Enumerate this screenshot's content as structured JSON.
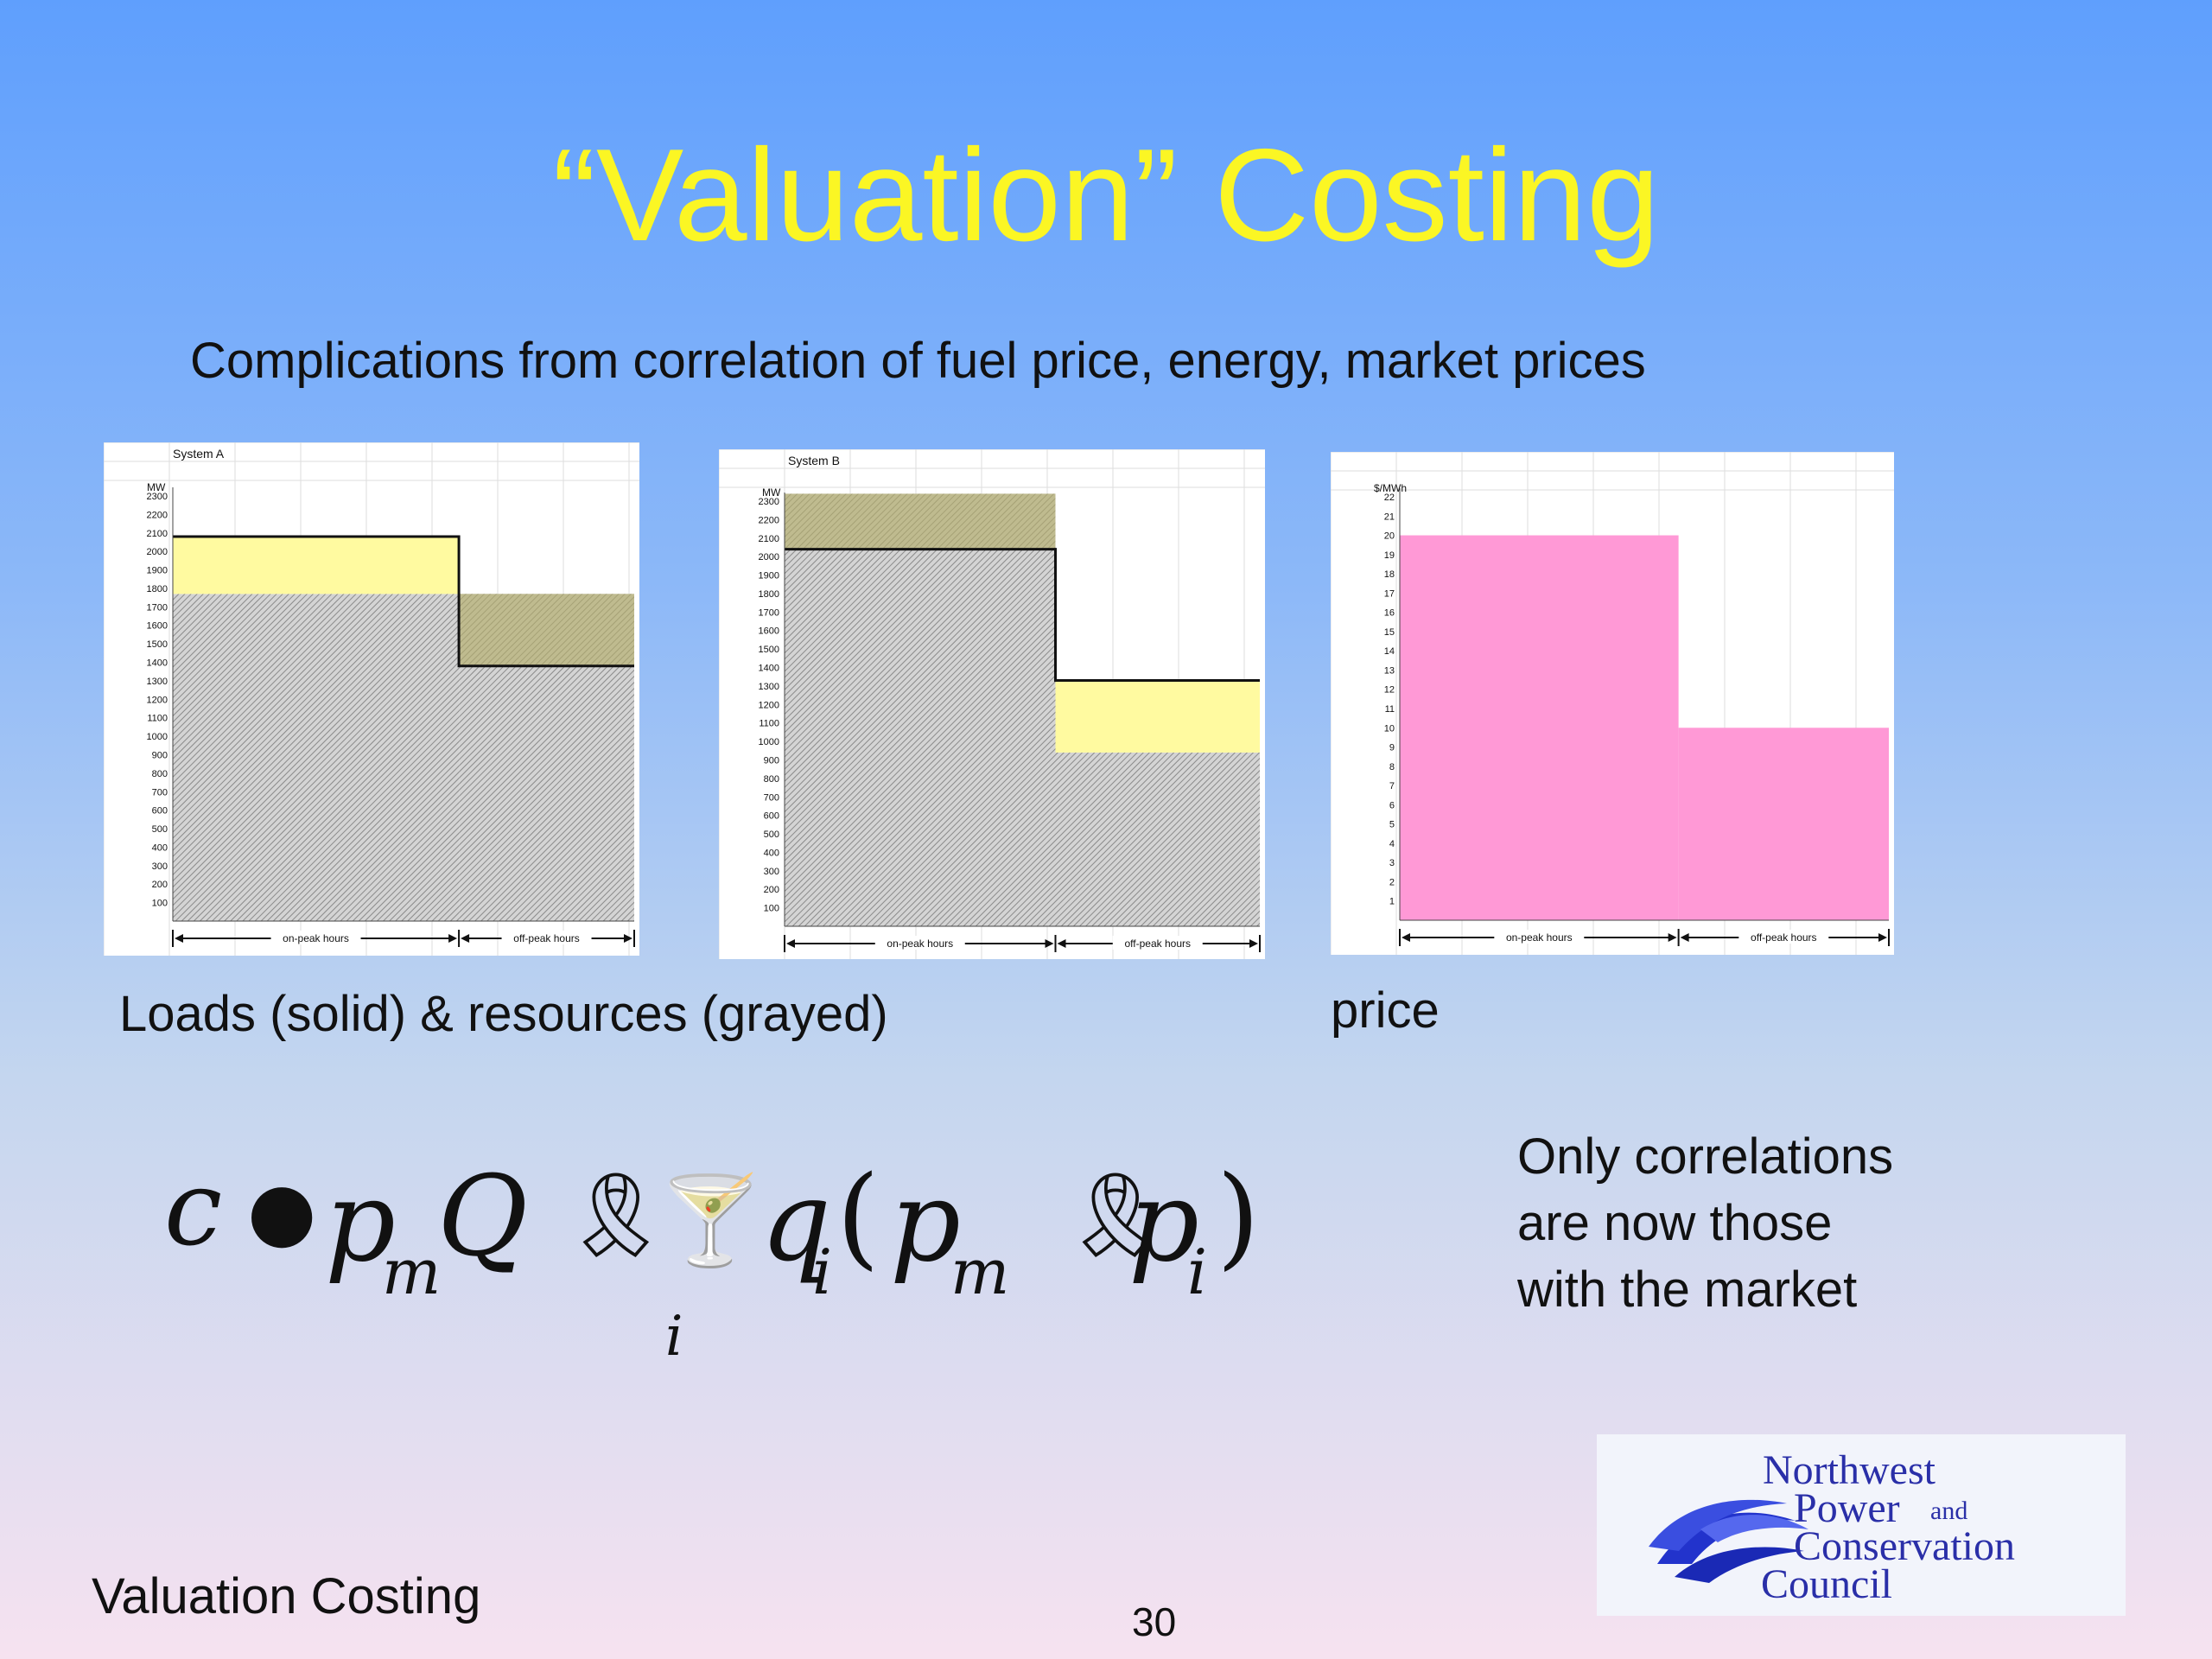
{
  "slide": {
    "title": "“Valuation” Costing",
    "subtitle": "Complications from correlation of fuel price, energy, market prices",
    "caption_loads": "Loads (solid) & resources (grayed)",
    "caption_price": "price",
    "note_lines": [
      "Only correlations",
      "are now those",
      "with the market"
    ],
    "footer_left": "Valuation Costing",
    "page_number": "30",
    "logo_lines": [
      "Northwest",
      "Power",
      "and",
      "Conservation",
      "Council"
    ]
  },
  "formula": {
    "c": "c",
    "bullet": "●",
    "p": "p",
    "m": "m",
    "Q": "Q",
    "ribbon": "🎗",
    "glass": "🍸",
    "q": "q",
    "i": "i",
    "lparen": "(",
    "rparen": ")"
  },
  "colors": {
    "title": "#fbf624",
    "load_surplus_fill": "#fffaa0",
    "market_purchase_fill": "#b4ad6a",
    "price_fill": "#ff99d6",
    "hatch": "#8a8a8a"
  },
  "chart_data": [
    {
      "type": "area",
      "title": "System A",
      "ylabel": "MW",
      "ylim": [
        0,
        2300
      ],
      "yticks": [
        "2300",
        "2200",
        "2100",
        "2000",
        "1900",
        "1800",
        "1700",
        "1600",
        "1500",
        "1400",
        "1300",
        "1200",
        "1100",
        "1000",
        "900",
        "800",
        "700",
        "600",
        "500",
        "400",
        "300",
        "200",
        "100"
      ],
      "categories": [
        "on-peak hours",
        "off-peak hours"
      ],
      "load": [
        2080,
        1380
      ],
      "resource": [
        1770,
        1770
      ],
      "x_split_fraction": 0.62
    },
    {
      "type": "area",
      "title": "System B",
      "ylabel": "MW",
      "ylim": [
        0,
        2300
      ],
      "yticks": [
        "2300",
        "2200",
        "2100",
        "2000",
        "1900",
        "1800",
        "1700",
        "1600",
        "1500",
        "1400",
        "1300",
        "1200",
        "1100",
        "1000",
        "900",
        "800",
        "700",
        "600",
        "500",
        "400",
        "300",
        "200",
        "100"
      ],
      "categories": [
        "on-peak hours",
        "off-peak hours"
      ],
      "load": [
        2040,
        1330
      ],
      "resource": [
        2340,
        940
      ],
      "x_split_fraction": 0.57
    },
    {
      "type": "bar",
      "title": "",
      "ylabel": "$/MWh",
      "ylim": [
        0,
        22
      ],
      "yticks": [
        "22",
        "21",
        "20",
        "19",
        "18",
        "17",
        "16",
        "15",
        "14",
        "13",
        "12",
        "11",
        "10",
        "9",
        "8",
        "7",
        "6",
        "5",
        "4",
        "3",
        "2",
        "1"
      ],
      "categories": [
        "on-peak hours",
        "off-peak hours"
      ],
      "values": [
        20,
        10
      ],
      "x_split_fraction": 0.57
    }
  ]
}
